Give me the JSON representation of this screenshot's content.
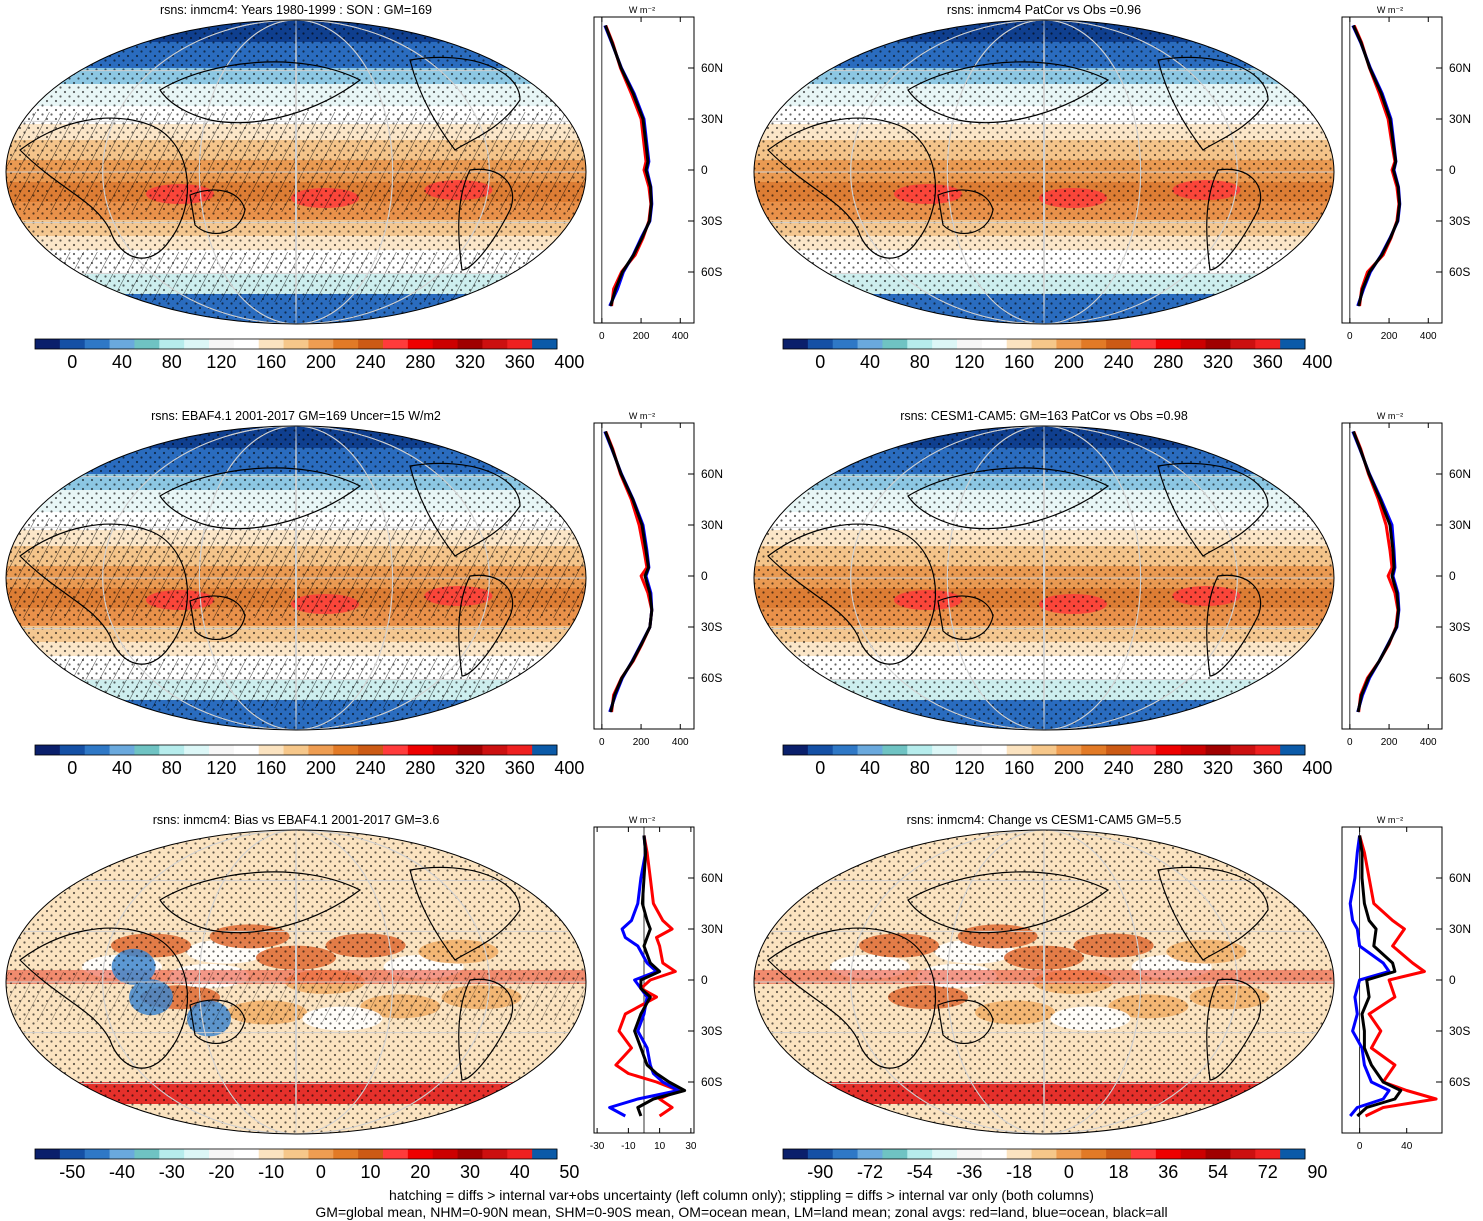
{
  "chart_data": [
    {
      "type": "heatmap",
      "title": "rsns: inmcm4: Years 1980-1999 : SON : GM=169",
      "colorbar_labels": [
        "0",
        "40",
        "80",
        "120",
        "160",
        "200",
        "240",
        "280",
        "320",
        "360",
        "400"
      ],
      "regime": "abs",
      "hatching": "dense",
      "zonal_profile": {
        "title": "W m⁻²",
        "xticks": [
          "0",
          "200",
          "400"
        ],
        "xlim": [
          -40,
          470
        ],
        "ylabels": [
          "60N",
          "30N",
          "0",
          "30S",
          "60S"
        ],
        "lat": [
          85,
          75,
          60,
          45,
          30,
          15,
          5,
          0,
          -10,
          -20,
          -30,
          -40,
          -50,
          -60,
          -70,
          -80
        ],
        "series": [
          {
            "name": "land",
            "color": "#ff0000",
            "values": [
              20,
              55,
              95,
              150,
              200,
              215,
              225,
              215,
              240,
              250,
              240,
              210,
              170,
              100,
              60,
              50
            ]
          },
          {
            "name": "ocean",
            "color": "#0000ff",
            "values": [
              15,
              50,
              100,
              165,
              215,
              230,
              240,
              230,
              250,
              255,
              245,
              200,
              160,
              110,
              80,
              40
            ]
          },
          {
            "name": "all",
            "color": "#000000",
            "values": [
              18,
              52,
              98,
              160,
              210,
              225,
              235,
              225,
              248,
              252,
              243,
              205,
              162,
              105,
              70,
              45
            ]
          }
        ]
      }
    },
    {
      "type": "heatmap",
      "title": "rsns: inmcm4 PatCor vs Obs =0.96",
      "colorbar_labels": [
        "0",
        "40",
        "80",
        "120",
        "160",
        "200",
        "240",
        "280",
        "320",
        "360",
        "400"
      ],
      "regime": "abs",
      "hatching": "none",
      "zonal_profile": {
        "title": "W m⁻²",
        "xticks": [
          "0",
          "200",
          "400"
        ],
        "xlim": [
          -40,
          470
        ],
        "ylabels": [
          "60N",
          "30N",
          "0",
          "30S",
          "60S"
        ],
        "lat": [
          85,
          75,
          60,
          45,
          30,
          15,
          5,
          0,
          -10,
          -20,
          -30,
          -40,
          -50,
          -60,
          -70,
          -80
        ],
        "series": [
          {
            "name": "land",
            "color": "#ff0000",
            "values": [
              22,
              60,
              100,
              150,
              195,
              215,
              230,
              215,
              240,
              250,
              240,
              210,
              170,
              90,
              60,
              50
            ]
          },
          {
            "name": "ocean",
            "color": "#0000ff",
            "values": [
              15,
              55,
              105,
              165,
              210,
              225,
              235,
              225,
              248,
              255,
              245,
              205,
              160,
              105,
              70,
              40
            ]
          },
          {
            "name": "all",
            "color": "#000000",
            "values": [
              18,
              57,
              102,
              160,
              205,
              222,
              234,
              222,
              246,
              253,
              243,
              207,
              163,
              100,
              65,
              45
            ]
          }
        ]
      }
    },
    {
      "type": "heatmap",
      "title": "rsns: EBAF4.1 2001-2017 GM=169 Uncer=15 W/m2",
      "colorbar_labels": [
        "0",
        "40",
        "80",
        "120",
        "160",
        "200",
        "240",
        "280",
        "320",
        "360",
        "400"
      ],
      "regime": "abs",
      "hatching": "dense",
      "zonal_profile": {
        "title": "W m⁻²",
        "xticks": [
          "0",
          "200",
          "400"
        ],
        "xlim": [
          -40,
          470
        ],
        "ylabels": [
          "60N",
          "30N",
          "0",
          "30S",
          "60S"
        ],
        "lat": [
          85,
          75,
          60,
          45,
          30,
          15,
          5,
          0,
          -10,
          -20,
          -30,
          -40,
          -50,
          -60,
          -70,
          -80
        ],
        "series": [
          {
            "name": "land",
            "color": "#ff0000",
            "values": [
              20,
              55,
              95,
              150,
              190,
              215,
              230,
              200,
              235,
              255,
              245,
              205,
              160,
              100,
              60,
              50
            ]
          },
          {
            "name": "ocean",
            "color": "#0000ff",
            "values": [
              15,
              50,
              100,
              160,
              210,
              230,
              240,
              225,
              250,
              255,
              245,
              200,
              155,
              105,
              70,
              40
            ]
          },
          {
            "name": "all",
            "color": "#000000",
            "values": [
              18,
              52,
              98,
              158,
              205,
              225,
              238,
              220,
              245,
              255,
              245,
              202,
              157,
              102,
              65,
              45
            ]
          }
        ]
      }
    },
    {
      "type": "heatmap",
      "title": "rsns: CESM1-CAM5: GM=163 PatCor vs Obs =0.98",
      "colorbar_labels": [
        "0",
        "40",
        "80",
        "120",
        "160",
        "200",
        "240",
        "280",
        "320",
        "360",
        "400"
      ],
      "regime": "abs",
      "hatching": "none",
      "zonal_profile": {
        "title": "W m⁻²",
        "xticks": [
          "0",
          "200",
          "400"
        ],
        "xlim": [
          -40,
          470
        ],
        "ylabels": [
          "60N",
          "30N",
          "0",
          "30S",
          "60S"
        ],
        "lat": [
          85,
          75,
          60,
          45,
          30,
          15,
          5,
          0,
          -10,
          -20,
          -30,
          -40,
          -50,
          -60,
          -70,
          -80
        ],
        "series": [
          {
            "name": "land",
            "color": "#ff0000",
            "values": [
              20,
              55,
              95,
              145,
              185,
              205,
              215,
              195,
              230,
              245,
              235,
              200,
              150,
              90,
              55,
              45
            ]
          },
          {
            "name": "ocean",
            "color": "#0000ff",
            "values": [
              15,
              50,
              100,
              160,
              215,
              225,
              230,
              220,
              245,
              250,
              240,
              195,
              150,
              100,
              65,
              40
            ]
          },
          {
            "name": "all",
            "color": "#000000",
            "values": [
              18,
              52,
              98,
              155,
              205,
              220,
              225,
              215,
              240,
              248,
              238,
              197,
              150,
              95,
              60,
              42
            ]
          }
        ]
      }
    },
    {
      "type": "heatmap",
      "title": "rsns: inmcm4: Bias vs EBAF4.1 2001-2017  GM=3.6",
      "colorbar_labels": [
        "-50",
        "-40",
        "-30",
        "-20",
        "-10",
        "0",
        "10",
        "20",
        "30",
        "40",
        "50"
      ],
      "regime": "diff",
      "hatching": "sparse",
      "zonal_profile": {
        "title": "W m⁻²",
        "xticks": [
          "-30",
          "-10",
          "10",
          "30"
        ],
        "xlim": [
          -32,
          32
        ],
        "ylabels": [
          "60N",
          "30N",
          "0",
          "30S",
          "60S"
        ],
        "lat": [
          85,
          75,
          60,
          45,
          35,
          30,
          25,
          20,
          10,
          5,
          0,
          -5,
          -10,
          -20,
          -30,
          -40,
          -50,
          -55,
          -60,
          -65,
          -70,
          -75,
          -80
        ],
        "series": [
          {
            "name": "land",
            "color": "#ff0000",
            "values": [
              0,
              2,
              4,
              6,
              12,
              18,
              8,
              10,
              12,
              20,
              4,
              -2,
              8,
              -12,
              -16,
              -8,
              -18,
              -10,
              8,
              22,
              10,
              18,
              10
            ]
          },
          {
            "name": "ocean",
            "color": "#0000ff",
            "values": [
              0,
              1,
              -2,
              -4,
              -8,
              -14,
              -12,
              -4,
              2,
              8,
              -6,
              -2,
              2,
              0,
              -4,
              2,
              4,
              6,
              12,
              22,
              -4,
              -22,
              -12
            ]
          },
          {
            "name": "all",
            "color": "#000000",
            "values": [
              0,
              1,
              0,
              -1,
              2,
              4,
              2,
              0,
              4,
              10,
              -2,
              -2,
              4,
              -2,
              -6,
              -2,
              2,
              8,
              16,
              26,
              6,
              -4,
              -2
            ]
          }
        ]
      }
    },
    {
      "type": "heatmap",
      "title": "rsns: inmcm4: Change vs CESM1-CAM5 GM=5.5",
      "colorbar_labels": [
        "-90",
        "-72",
        "-54",
        "-36",
        "-18",
        "0",
        "18",
        "36",
        "54",
        "72",
        "90"
      ],
      "regime": "diff",
      "hatching": "none",
      "zonal_profile": {
        "title": "W m⁻²",
        "xticks": [
          "0",
          "40"
        ],
        "xlim": [
          -15,
          70
        ],
        "ylabels": [
          "60N",
          "30N",
          "0",
          "30S",
          "60S"
        ],
        "lat": [
          85,
          75,
          60,
          45,
          35,
          30,
          20,
          10,
          5,
          0,
          -10,
          -20,
          -30,
          -40,
          -50,
          -60,
          -65,
          -70,
          -75,
          -80
        ],
        "series": [
          {
            "name": "land",
            "color": "#ff0000",
            "values": [
              0,
              4,
              8,
              12,
              28,
              38,
              28,
              45,
              55,
              25,
              30,
              8,
              18,
              10,
              30,
              20,
              40,
              65,
              20,
              5
            ]
          },
          {
            "name": "ocean",
            "color": "#0000ff",
            "values": [
              0,
              -2,
              -4,
              -8,
              -6,
              -2,
              0,
              20,
              25,
              0,
              -4,
              -2,
              -6,
              2,
              4,
              10,
              25,
              20,
              -2,
              -8
            ]
          },
          {
            "name": "all",
            "color": "#000000",
            "values": [
              0,
              2,
              2,
              4,
              8,
              14,
              12,
              28,
              30,
              6,
              8,
              2,
              4,
              4,
              10,
              20,
              35,
              30,
              6,
              -2
            ]
          }
        ]
      }
    }
  ],
  "footer": {
    "line1": "hatching = diffs > internal var+obs uncertainty (left column only); stippling = diffs > internal var only (both columns)",
    "line2": "GM=global mean, NHM=0-90N mean, SHM=0-90S mean, OM=ocean mean, LM=land mean; zonal avgs: red=land, blue=ocean, black=all"
  },
  "colors": {
    "abs_palette": [
      "#0a1f6b",
      "#1550a5",
      "#2f78c6",
      "#6aa9dd",
      "#6fc3c3",
      "#b6ecec",
      "#dcf7f7",
      "#f7f7f7",
      "#ffffff",
      "#fbe3c0",
      "#f6c78a",
      "#ee9d52",
      "#e27a26",
      "#cc5a15",
      "#ff3b3b",
      "#ee0000",
      "#cc0000",
      "#a00000",
      "#cc1010",
      "#ee2020",
      "#0b5aa8"
    ],
    "diff_palette": [
      "#0a1f6b",
      "#1550a5",
      "#2f78c6",
      "#6aa9dd",
      "#6fc3c3",
      "#b6ecec",
      "#dcf7f7",
      "#f7f7f7",
      "#ffffff",
      "#fbe3c0",
      "#f6c78a",
      "#ee9d52",
      "#e27a26",
      "#cc5a15",
      "#ff3b3b",
      "#ee0000",
      "#cc0000",
      "#a00000",
      "#cc1010",
      "#ee2020",
      "#0b5aa8"
    ]
  }
}
